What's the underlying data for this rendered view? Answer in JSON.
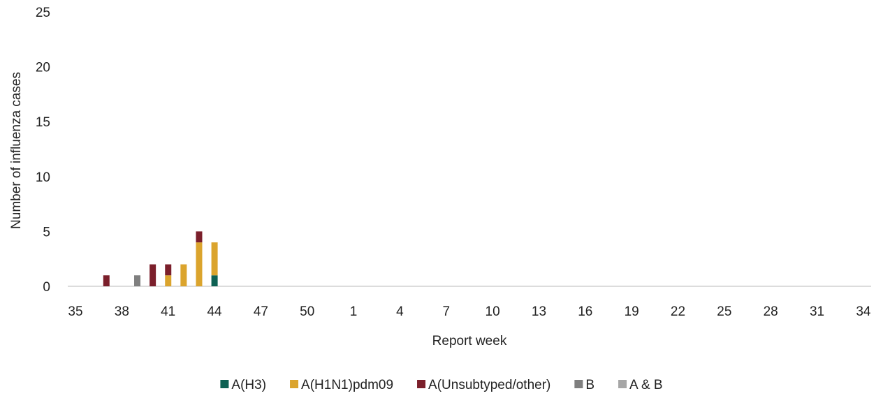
{
  "chart_data": {
    "type": "bar",
    "stacked": true,
    "xlabel": "Report week",
    "ylabel": "Number of influenza cases",
    "ylim": [
      0,
      25
    ],
    "y_ticks": [
      "0",
      "5",
      "10",
      "15",
      "20",
      "25"
    ],
    "grid": false,
    "legend_position": "bottom",
    "categories": [
      "35",
      "36",
      "37",
      "38",
      "39",
      "40",
      "41",
      "42",
      "43",
      "44",
      "45",
      "46",
      "47",
      "48",
      "49",
      "50",
      "51",
      "52",
      "1",
      "2",
      "3",
      "4",
      "5",
      "6",
      "7",
      "8",
      "9",
      "10",
      "11",
      "12",
      "13",
      "14",
      "15",
      "16",
      "17",
      "18",
      "19",
      "20",
      "21",
      "22",
      "23",
      "24",
      "25",
      "26",
      "27",
      "28",
      "29",
      "30",
      "31",
      "32",
      "33",
      "34"
    ],
    "x_tick_labels": [
      "35",
      "38",
      "41",
      "44",
      "47",
      "50",
      "1",
      "4",
      "7",
      "10",
      "13",
      "16",
      "19",
      "22",
      "25",
      "28",
      "31",
      "34"
    ],
    "series": [
      {
        "name": "A(H3)",
        "color": "#0d6153",
        "values": [
          0,
          0,
          0,
          0,
          0,
          0,
          0,
          0,
          0,
          1,
          0,
          0,
          0,
          0,
          0,
          0,
          0,
          0,
          0,
          0,
          0,
          0,
          0,
          0,
          0,
          0,
          0,
          0,
          0,
          0,
          0,
          0,
          0,
          0,
          0,
          0,
          0,
          0,
          0,
          0,
          0,
          0,
          0,
          0,
          0,
          0,
          0,
          0,
          0,
          0,
          0,
          0
        ]
      },
      {
        "name": "A(H1N1)pdm09",
        "color": "#dba42d",
        "values": [
          0,
          0,
          0,
          0,
          0,
          0,
          1,
          2,
          4,
          3,
          0,
          0,
          0,
          0,
          0,
          0,
          0,
          0,
          0,
          0,
          0,
          0,
          0,
          0,
          0,
          0,
          0,
          0,
          0,
          0,
          0,
          0,
          0,
          0,
          0,
          0,
          0,
          0,
          0,
          0,
          0,
          0,
          0,
          0,
          0,
          0,
          0,
          0,
          0,
          0,
          0,
          0
        ]
      },
      {
        "name": "A(Unsubtyped/other)",
        "color": "#7b1f2b",
        "values": [
          0,
          0,
          1,
          0,
          0,
          2,
          1,
          0,
          1,
          0,
          0,
          0,
          0,
          0,
          0,
          0,
          0,
          0,
          0,
          0,
          0,
          0,
          0,
          0,
          0,
          0,
          0,
          0,
          0,
          0,
          0,
          0,
          0,
          0,
          0,
          0,
          0,
          0,
          0,
          0,
          0,
          0,
          0,
          0,
          0,
          0,
          0,
          0,
          0,
          0,
          0,
          0
        ]
      },
      {
        "name": "B",
        "color": "#7f7f7f",
        "values": [
          0,
          0,
          0,
          0,
          1,
          0,
          0,
          0,
          0,
          0,
          0,
          0,
          0,
          0,
          0,
          0,
          0,
          0,
          0,
          0,
          0,
          0,
          0,
          0,
          0,
          0,
          0,
          0,
          0,
          0,
          0,
          0,
          0,
          0,
          0,
          0,
          0,
          0,
          0,
          0,
          0,
          0,
          0,
          0,
          0,
          0,
          0,
          0,
          0,
          0,
          0,
          0
        ]
      },
      {
        "name": "A & B",
        "color": "#a6a6a6",
        "values": [
          0,
          0,
          0,
          0,
          0,
          0,
          0,
          0,
          0,
          0,
          0,
          0,
          0,
          0,
          0,
          0,
          0,
          0,
          0,
          0,
          0,
          0,
          0,
          0,
          0,
          0,
          0,
          0,
          0,
          0,
          0,
          0,
          0,
          0,
          0,
          0,
          0,
          0,
          0,
          0,
          0,
          0,
          0,
          0,
          0,
          0,
          0,
          0,
          0,
          0,
          0,
          0
        ]
      }
    ]
  }
}
